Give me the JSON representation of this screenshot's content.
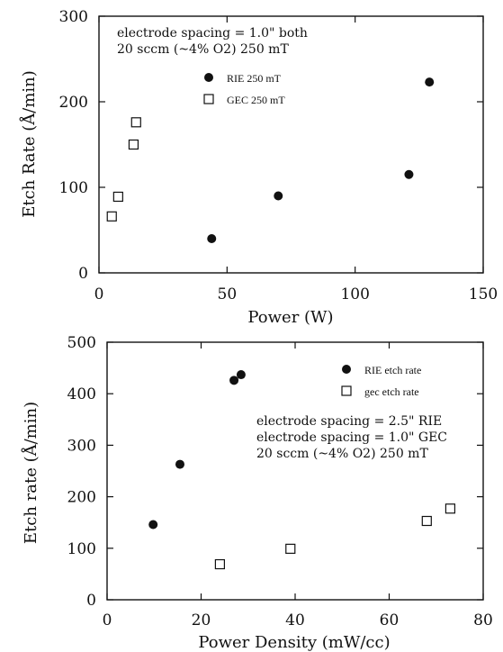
{
  "colors": {
    "ink": "#111111",
    "background": "#ffffff"
  },
  "chart_data": [
    {
      "type": "scatter",
      "xlabel": "Power (W)",
      "ylabel": "Etch Rate (Å/min)",
      "xlim": [
        0,
        150
      ],
      "ylim": [
        0,
        300
      ],
      "x_ticks": [
        "0",
        "50",
        "100",
        "150"
      ],
      "y_ticks": [
        "0",
        "100",
        "200",
        "300"
      ],
      "grid": false,
      "annotations": [
        "electrode spacing = 1.0\" both",
        "20 sccm (~4% O2) 250 mT"
      ],
      "series": [
        {
          "name": "RIE 250 mT",
          "marker": "filled-circle",
          "points": [
            [
              44,
              40
            ],
            [
              70,
              90
            ],
            [
              121,
              115
            ],
            [
              129,
              223
            ]
          ]
        },
        {
          "name": "GEC 250 mT",
          "marker": "open-square",
          "points": [
            [
              5,
              66
            ],
            [
              7.5,
              89
            ],
            [
              13.5,
              150
            ],
            [
              14.5,
              176
            ]
          ]
        }
      ]
    },
    {
      "type": "scatter",
      "xlabel": "Power Density (mW/cc)",
      "ylabel": "Etch rate (Å/min)",
      "xlim": [
        0,
        80
      ],
      "ylim": [
        0,
        500
      ],
      "x_ticks": [
        "0",
        "20",
        "40",
        "60",
        "80"
      ],
      "y_ticks": [
        "0",
        "100",
        "200",
        "300",
        "400",
        "500"
      ],
      "grid": false,
      "annotations": [
        "electrode spacing = 2.5\" RIE",
        "electrode spacing = 1.0\" GEC",
        "20 sccm (~4% O2) 250 mT"
      ],
      "series": [
        {
          "name": "RIE etch rate",
          "marker": "filled-circle",
          "points": [
            [
              9.8,
              146
            ],
            [
              15.5,
              263
            ],
            [
              27,
              426
            ],
            [
              28.5,
              437
            ]
          ]
        },
        {
          "name": "gec etch rate",
          "marker": "open-square",
          "points": [
            [
              24,
              69
            ],
            [
              39,
              99
            ],
            [
              68,
              153
            ],
            [
              73,
              177
            ]
          ]
        }
      ]
    }
  ]
}
